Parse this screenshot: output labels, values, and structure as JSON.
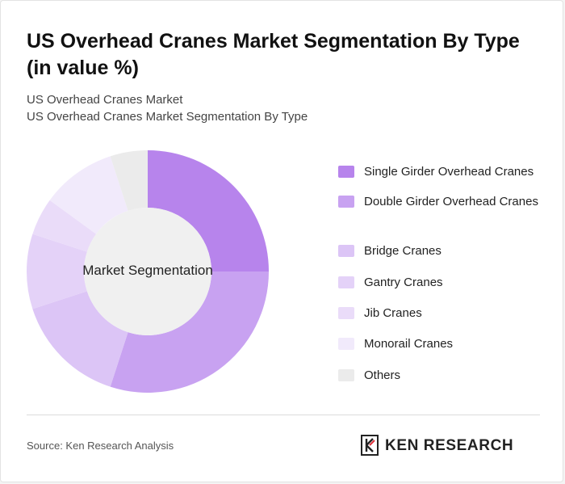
{
  "title": "US Overhead Cranes Market Segmentation By Type (in value %)",
  "subtitle_1": "US Overhead Cranes Market",
  "subtitle_2": "US Overhead Cranes Market Segmentation By Type",
  "chart_data": {
    "type": "pie",
    "center_label": "Market Segmentation",
    "legend_position": "right",
    "categories": [
      "Single Girder Overhead Cranes",
      "Double Girder Overhead Cranes",
      "Bridge Cranes",
      "Gantry Cranes",
      "Jib Cranes",
      "Monorail Cranes",
      "Others"
    ],
    "values": [
      25,
      30,
      15,
      10,
      5,
      10,
      5
    ],
    "colors": [
      "#b784ec",
      "#c8a2f1",
      "#dcc5f6",
      "#e4d2f8",
      "#eadcf9",
      "#f1eafb",
      "#ebebeb"
    ]
  },
  "source": "Source: Ken Research Analysis",
  "brand": {
    "name": "KEN RESEARCH",
    "icon": "ken-research-logo-icon"
  }
}
